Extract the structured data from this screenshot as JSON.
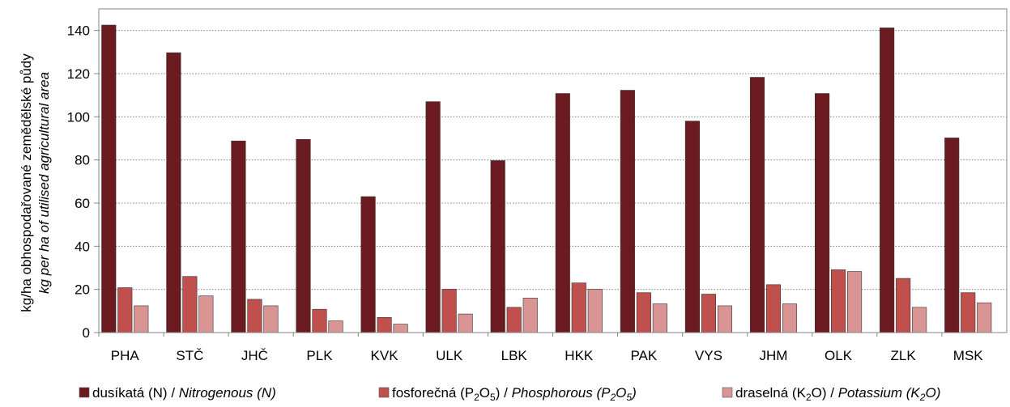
{
  "chart_data": {
    "type": "bar",
    "ylabel": "kg/ha obhospodařované zemědělské půdy",
    "ylabel_en": "kg per ha of utilised agricultural area",
    "ylim": [
      0,
      150
    ],
    "yticks": [
      0,
      20,
      40,
      60,
      80,
      100,
      120,
      140
    ],
    "grid": "horizontal dotted",
    "legend_position": "bottom",
    "categories": [
      "PHA",
      "STČ",
      "JHČ",
      "PLK",
      "KVK",
      "ULK",
      "LBK",
      "HKK",
      "PAK",
      "VYS",
      "JHM",
      "OLK",
      "ZLK",
      "MSK"
    ],
    "series": [
      {
        "name_cz": "dusíkatá (N)",
        "name_en": "Nitrogenous (N)",
        "color": "#6b1a1f",
        "values": [
          142.5,
          129.7,
          88.8,
          89.5,
          63.0,
          107.0,
          79.7,
          110.8,
          112.3,
          98.0,
          118.3,
          110.8,
          141.2,
          90.2
        ]
      },
      {
        "name_cz": "fosforečná (P",
        "name_en": "Phosphorous (P",
        "color": "#c0504d",
        "values": [
          20.8,
          26.0,
          15.4,
          10.8,
          7.0,
          20.1,
          11.7,
          23.0,
          18.5,
          17.8,
          22.2,
          29.1,
          25.1,
          18.5
        ]
      },
      {
        "name_cz": "draselná (K",
        "name_en": "Potassium (K",
        "color": "#d99594",
        "values": [
          12.4,
          17.0,
          12.4,
          5.4,
          3.9,
          8.6,
          16.0,
          20.1,
          13.3,
          12.4,
          13.3,
          28.3,
          11.7,
          13.8
        ]
      }
    ]
  }
}
